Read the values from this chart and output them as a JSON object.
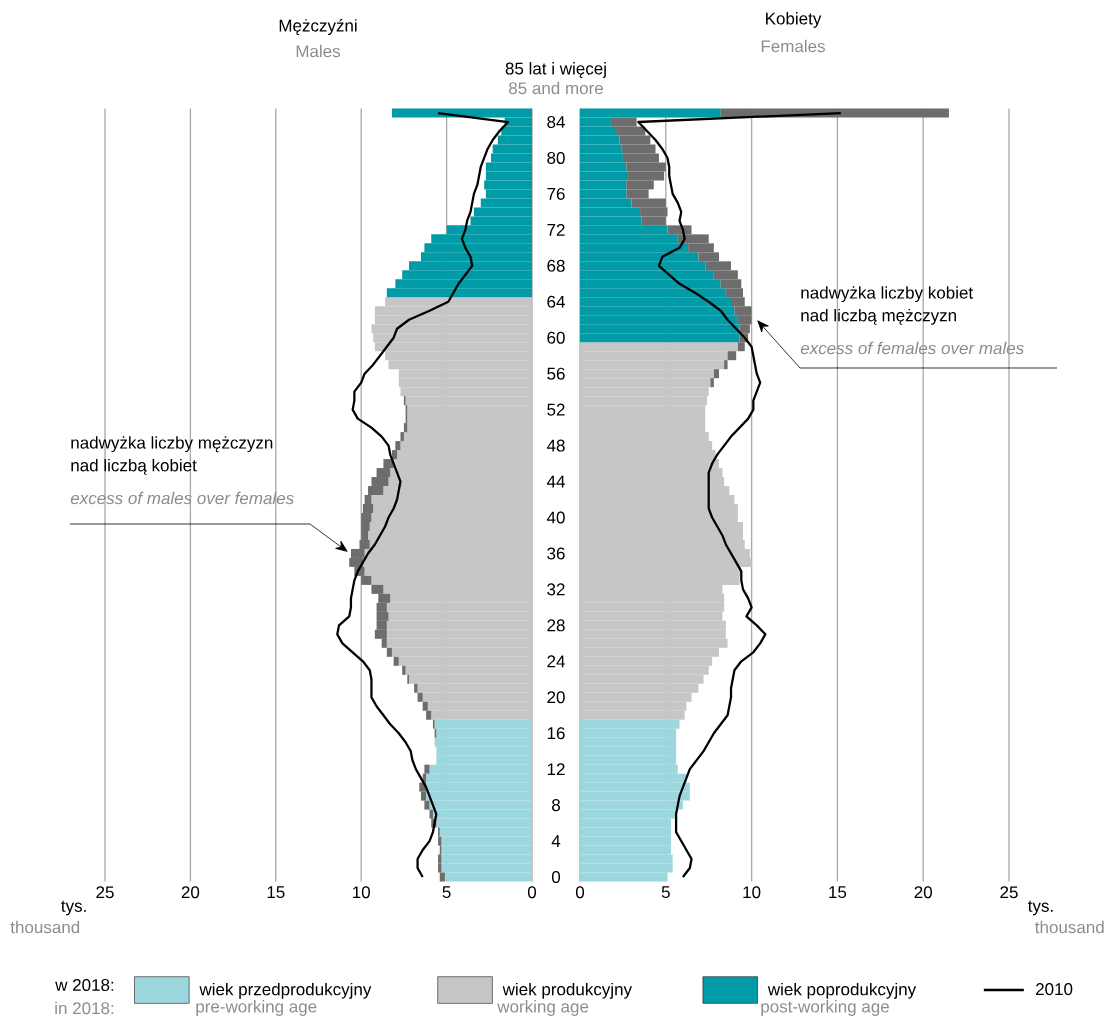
{
  "chart_data": [
    {
      "type": "bar",
      "orientation": "horizontal",
      "stacked": true,
      "title": "Mężczyźni",
      "subtitle": "Males",
      "xlabel": "tys.",
      "legend": "bottom",
      "legend_title": "w 2018:",
      "grid": "x",
      "xlim": [
        25,
        0
      ],
      "xticks": [
        0,
        5,
        10,
        15,
        20,
        25
      ],
      "categories": [
        null,
        "84",
        null,
        null,
        null,
        "80",
        null,
        null,
        null,
        "76",
        null,
        null,
        null,
        "72",
        null,
        null,
        null,
        "68",
        null,
        null,
        null,
        "64",
        null,
        null,
        null,
        "60",
        null,
        null,
        null,
        "56",
        null,
        null,
        null,
        "52",
        null,
        null,
        null,
        "48",
        null,
        null,
        null,
        "44",
        null,
        null,
        null,
        "40",
        null,
        null,
        null,
        "36",
        null,
        null,
        null,
        "32",
        null,
        null,
        null,
        "28",
        null,
        null,
        null,
        "24",
        null,
        null,
        null,
        "20",
        null,
        null,
        null,
        "16",
        null,
        null,
        null,
        "12",
        null,
        null,
        null,
        "8",
        null,
        null,
        null,
        "4",
        null,
        null,
        null,
        "0"
      ],
      "series": [
        {
          "name": "wiek przedprodukcyjny",
          "color": "#9dd7de",
          "values": [
            null,
            null,
            null,
            null,
            null,
            null,
            null,
            null,
            null,
            null,
            null,
            null,
            null,
            null,
            null,
            null,
            null,
            null,
            null,
            null,
            null,
            null,
            null,
            null,
            null,
            null,
            null,
            null,
            null,
            null,
            null,
            null,
            null,
            null,
            null,
            null,
            null,
            null,
            null,
            null,
            null,
            null,
            null,
            null,
            null,
            null,
            null,
            null,
            null,
            null,
            null,
            null,
            null,
            null,
            null,
            null,
            null,
            null,
            null,
            null,
            null,
            null,
            null,
            null,
            null,
            null,
            null,
            null,
            5.7,
            5.6,
            5.7,
            5.6,
            5.6,
            6.0,
            6.2,
            6.2,
            6.2,
            6.0,
            5.8,
            5.6,
            5.4,
            5.3,
            5.3,
            5.3,
            5.3,
            5.1
          ]
        },
        {
          "name": "wiek produkcyjny",
          "color": "#c6c6c6",
          "values": [
            null,
            null,
            null,
            null,
            null,
            null,
            null,
            null,
            null,
            null,
            null,
            null,
            null,
            null,
            null,
            null,
            null,
            null,
            null,
            null,
            null,
            8.6,
            9.2,
            9.2,
            9.4,
            9.3,
            9.2,
            8.6,
            8.4,
            7.8,
            7.8,
            7.7,
            7.4,
            7.3,
            7.3,
            7.3,
            7.5,
            7.7,
            7.9,
            8.1,
            8.3,
            8.4,
            8.7,
            9.4,
            9.3,
            9.4,
            9.5,
            9.6,
            9.5,
            9.8,
            9.9,
            9.8,
            9.4,
            8.7,
            8.3,
            8.5,
            8.4,
            8.5,
            8.5,
            8.5,
            8.2,
            7.8,
            7.4,
            7.2,
            6.7,
            6.4,
            6.1,
            5.9,
            null,
            null,
            null,
            null,
            null,
            null,
            null,
            null,
            null,
            null,
            null,
            null,
            null,
            null,
            null,
            null,
            null,
            null
          ]
        },
        {
          "name": "wiek poprodukcyjny",
          "color": "#009ba6",
          "values": [
            8.2,
            1.6,
            1.8,
            2.0,
            2.3,
            2.4,
            2.7,
            2.7,
            2.8,
            2.7,
            3.0,
            3.4,
            3.6,
            5.0,
            5.9,
            6.3,
            6.5,
            7.2,
            7.6,
            8.0,
            8.5,
            null,
            null,
            null,
            null,
            null,
            null,
            null,
            null,
            null,
            null,
            null,
            null,
            null,
            null,
            null,
            null,
            null,
            null,
            null,
            null,
            null,
            null,
            null,
            null,
            null,
            null,
            null,
            null,
            null,
            null,
            null,
            null,
            null,
            null,
            null,
            null,
            null,
            null,
            null,
            null,
            null,
            null,
            null,
            null,
            null,
            null,
            null,
            null,
            null,
            null,
            null,
            null,
            null,
            null,
            null,
            null,
            null,
            null,
            null,
            null,
            null,
            null,
            null,
            null,
            null
          ]
        },
        {
          "color": "#6d6d6d",
          "values": [
            null,
            null,
            null,
            null,
            null,
            null,
            null,
            null,
            null,
            null,
            null,
            null,
            null,
            null,
            null,
            null,
            null,
            null,
            null,
            null,
            null,
            null,
            null,
            null,
            null,
            null,
            null,
            null,
            null,
            null,
            null,
            null,
            0.1,
            0.1,
            0.1,
            0.2,
            0.2,
            0.3,
            0.3,
            0.6,
            0.8,
            1.0,
            0.9,
            0.4,
            0.6,
            0.6,
            0.5,
            0.4,
            0.6,
            0.8,
            0.8,
            0.6,
            0.6,
            0.7,
            0.7,
            0.6,
            0.7,
            0.6,
            0.7,
            0.3,
            0.3,
            0.3,
            0.2,
            0.1,
            0.2,
            0.3,
            0.3,
            0.3,
            0.1,
            0.1,
            null,
            null,
            null,
            0.3,
            0.2,
            0.4,
            0.3,
            0.3,
            0.2,
            0.3,
            0.1,
            0.2,
            0.1,
            0.2,
            0.2,
            0.3
          ]
        },
        {
          "type": "line",
          "name": "2010",
          "color": "#000000",
          "values": [
            5.5,
            1.4,
            1.9,
            2.3,
            2.6,
            2.8,
            3.0,
            3.1,
            3.2,
            3.4,
            3.5,
            3.6,
            3.8,
            3.9,
            4.1,
            3.9,
            3.6,
            3.5,
            3.9,
            4.3,
            4.6,
            4.9,
            6.0,
            7.2,
            7.9,
            8.1,
            8.5,
            8.9,
            9.3,
            9.8,
            10.0,
            10.4,
            10.4,
            10.5,
            10.2,
            9.4,
            8.8,
            8.4,
            8.3,
            8.1,
            7.9,
            7.7,
            7.8,
            7.9,
            8.1,
            8.4,
            8.6,
            8.9,
            9.2,
            9.6,
            9.9,
            10.2,
            10.4,
            10.5,
            10.6,
            10.6,
            10.7,
            11.3,
            11.4,
            11.1,
            10.5,
            9.9,
            9.5,
            9.4,
            9.4,
            9.4,
            9.1,
            8.7,
            8.3,
            7.8,
            7.4,
            7.1,
            7.0,
            6.8,
            6.5,
            6.2,
            6.0,
            5.8,
            5.6,
            5.7,
            5.8,
            6.0,
            6.4,
            6.7,
            6.7,
            6.4
          ]
        }
      ],
      "annotations": [
        "85 lat i więcej",
        "85 and more",
        "thousand",
        "nadwyżka liczby mężczyzn nad liczbą kobiet",
        "excess of males over females",
        "in 2018:",
        "pre-working age",
        "working age",
        "post-working age"
      ]
    },
    {
      "type": "bar",
      "orientation": "horizontal",
      "stacked": true,
      "title": "Kobiety",
      "subtitle": "Females",
      "xlabel": "tys.",
      "grid": "x",
      "tick_labels": "x",
      "xlim": [
        0,
        25
      ],
      "xticks": [
        0,
        5,
        10,
        15,
        20,
        25
      ],
      "categories": [
        null,
        "84",
        null,
        null,
        null,
        "80",
        null,
        null,
        null,
        "76",
        null,
        null,
        null,
        "72",
        null,
        null,
        null,
        "68",
        null,
        null,
        null,
        "64",
        null,
        null,
        null,
        "60",
        null,
        null,
        null,
        "56",
        null,
        null,
        null,
        "52",
        null,
        null,
        null,
        "48",
        null,
        null,
        null,
        "44",
        null,
        null,
        null,
        "40",
        null,
        null,
        null,
        "36",
        null,
        null,
        null,
        "32",
        null,
        null,
        null,
        "28",
        null,
        null,
        null,
        "24",
        null,
        null,
        null,
        "20",
        null,
        null,
        null,
        "16",
        null,
        null,
        null,
        "12",
        null,
        null,
        null,
        "8",
        null,
        null,
        null,
        "4",
        null,
        null,
        null,
        "0"
      ],
      "series": [
        {
          "color": "#9dd7de",
          "values": [
            null,
            null,
            null,
            null,
            null,
            null,
            null,
            null,
            null,
            null,
            null,
            null,
            null,
            null,
            null,
            null,
            null,
            null,
            null,
            null,
            null,
            null,
            null,
            null,
            null,
            null,
            null,
            null,
            null,
            null,
            null,
            null,
            null,
            null,
            null,
            null,
            null,
            null,
            null,
            null,
            null,
            null,
            null,
            null,
            null,
            null,
            null,
            null,
            null,
            null,
            null,
            null,
            null,
            null,
            null,
            null,
            null,
            null,
            null,
            null,
            null,
            null,
            null,
            null,
            null,
            null,
            null,
            null,
            5.8,
            5.6,
            5.6,
            5.6,
            5.6,
            5.7,
            6.2,
            6.4,
            6.4,
            6.0,
            5.6,
            5.3,
            5.3,
            5.3,
            5.3,
            5.4,
            5.4,
            5.1
          ]
        },
        {
          "color": "#c6c6c6",
          "values": [
            null,
            null,
            null,
            null,
            null,
            null,
            null,
            null,
            null,
            null,
            null,
            null,
            null,
            null,
            null,
            null,
            null,
            null,
            null,
            null,
            null,
            null,
            null,
            null,
            null,
            null,
            9.2,
            8.6,
            8.4,
            7.8,
            7.6,
            7.5,
            7.4,
            7.3,
            7.3,
            7.3,
            7.5,
            7.7,
            7.9,
            8.1,
            8.3,
            8.4,
            8.7,
            9.0,
            9.2,
            9.2,
            9.5,
            9.5,
            9.6,
            9.9,
            10.0,
            9.4,
            9.3,
            8.3,
            8.4,
            8.4,
            8.3,
            8.5,
            8.5,
            8.6,
            8.1,
            7.7,
            7.5,
            7.2,
            6.9,
            6.5,
            6.2,
            6.1,
            null,
            null,
            null,
            null,
            null,
            null,
            null,
            null,
            null,
            null,
            null,
            null,
            null,
            null,
            null,
            null,
            null,
            null
          ]
        },
        {
          "color": "#009ba6",
          "values": [
            8.2,
            1.8,
            2.1,
            2.3,
            2.4,
            2.5,
            2.7,
            2.8,
            2.7,
            2.7,
            3.0,
            3.5,
            3.6,
            5.1,
            5.7,
            6.3,
            6.9,
            7.3,
            7.8,
            8.2,
            8.5,
            8.8,
            9.0,
            9.2,
            9.3,
            9.3,
            null,
            null,
            null,
            null,
            null,
            null,
            null,
            null,
            null,
            null,
            null,
            null,
            null,
            null,
            null,
            null,
            null,
            null,
            null,
            null,
            null,
            null,
            null,
            null,
            null,
            null,
            null,
            null,
            null,
            null,
            null,
            null,
            null,
            null,
            null,
            null,
            null,
            null,
            null,
            null,
            null,
            null,
            null,
            null,
            null,
            null,
            null,
            null,
            null,
            null,
            null,
            null,
            null,
            null,
            null,
            null,
            null,
            null,
            null,
            null
          ]
        },
        {
          "color": "#6d6d6d",
          "values": [
            13.3,
            1.5,
            1.7,
            1.8,
            2.0,
            2.1,
            2.3,
            2.1,
            1.6,
            1.3,
            2.0,
            1.6,
            1.4,
            1.4,
            1.8,
            1.5,
            1.2,
            1.5,
            1.4,
            1.2,
            1.0,
            0.8,
            1.0,
            0.8,
            0.6,
            0.5,
            0.4,
            0.5,
            0.2,
            0.3,
            0.2,
            null,
            null,
            null,
            null,
            null,
            null,
            null,
            null,
            null,
            null,
            null,
            null,
            null,
            null,
            null,
            null,
            null,
            null,
            null,
            null,
            null,
            null,
            null,
            null,
            null,
            null,
            null,
            null,
            null,
            null,
            null,
            null,
            null,
            null,
            null,
            null,
            null,
            null,
            null,
            null,
            null,
            null,
            null,
            null,
            null,
            null,
            null,
            null,
            null,
            null,
            null,
            null,
            null,
            null,
            null
          ]
        },
        {
          "type": "line",
          "color": "#000000",
          "values": [
            15.2,
            3.4,
            3.9,
            4.4,
            4.8,
            5.1,
            5.2,
            5.2,
            5.3,
            5.4,
            5.7,
            5.9,
            5.8,
            6.0,
            6.1,
            5.8,
            4.8,
            4.6,
            5.2,
            5.8,
            6.7,
            7.5,
            8.2,
            8.6,
            9.1,
            9.6,
            10.0,
            10.1,
            10.2,
            10.3,
            10.5,
            10.3,
            10.1,
            10.1,
            9.8,
            9.3,
            8.8,
            8.4,
            8.0,
            7.7,
            7.5,
            7.5,
            7.5,
            7.5,
            7.5,
            7.7,
            8.0,
            8.3,
            8.5,
            8.8,
            9.1,
            9.4,
            9.4,
            9.5,
            9.8,
            10.0,
            9.7,
            10.3,
            10.8,
            10.5,
            10.1,
            9.4,
            9.0,
            8.9,
            8.8,
            8.8,
            8.7,
            8.6,
            8.2,
            7.8,
            7.5,
            7.2,
            6.8,
            6.4,
            6.2,
            6.0,
            5.8,
            5.7,
            5.6,
            5.6,
            5.6,
            5.9,
            6.2,
            6.5,
            6.4,
            6.0
          ]
        }
      ],
      "annotations": [
        "thousand",
        "nadwyżka liczby kobiet nad liczbą mężczyzn",
        "excess of females over males"
      ]
    }
  ]
}
